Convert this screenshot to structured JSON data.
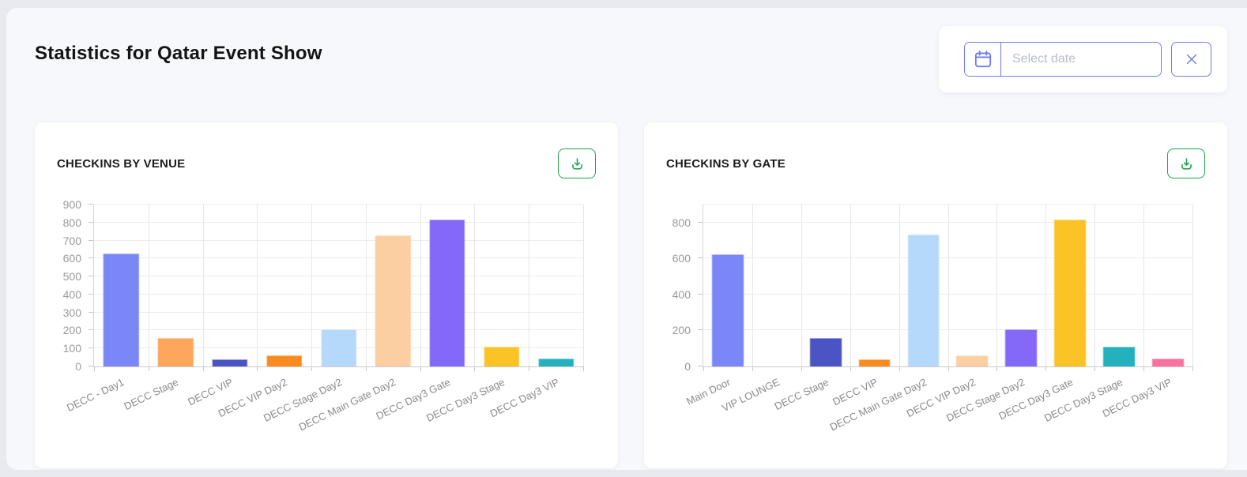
{
  "page": {
    "title": "Statistics for Qatar Event Show"
  },
  "date_picker": {
    "placeholder": "Select date",
    "calendar_icon": "calendar-icon",
    "clear_icon": "x-icon",
    "accent_color": "#6e7bef"
  },
  "cards": [
    {
      "title": "CHECKINS BY VENUE",
      "download_icon": "download-icon"
    },
    {
      "title": "CHECKINS BY GATE",
      "download_icon": "download-icon"
    }
  ],
  "chart_data": [
    {
      "type": "bar",
      "title": "CHECKINS BY VENUE",
      "categories": [
        "DECC - Day1",
        "DECC Stage",
        "DECC VIP",
        "DECC VIP Day2",
        "DECC Stage Day2",
        "DECC Main Gate Day2",
        "DECC Day3 Gate",
        "DECC Day3 Stage",
        "DECC Day3 VIP"
      ],
      "values": [
        628,
        160,
        40,
        60,
        205,
        730,
        815,
        110,
        45
      ],
      "colors": [
        "#7b86f7",
        "#fda75c",
        "#4a54c2",
        "#fb8b1f",
        "#b5d9fa",
        "#fbcfa2",
        "#8468f8",
        "#fcc327",
        "#22b1bd"
      ],
      "xlabel": "",
      "ylabel": "",
      "ylim": [
        0,
        900
      ],
      "ytick_labels": [
        0,
        100,
        200,
        300,
        400,
        500,
        600,
        700,
        800,
        900
      ],
      "ygridlines": [
        100,
        200,
        300,
        400,
        500,
        600,
        700,
        800,
        900
      ],
      "grid": true,
      "legend": "none",
      "xlabel_rotation": -26
    },
    {
      "type": "bar",
      "title": "CHECKINS BY GATE",
      "categories": [
        "Main Door",
        "VIP LOUNGE",
        "DECC Stage",
        "DECC VIP",
        "DECC Main Gate Day2",
        "DECC VIP Day2",
        "DECC Stage Day2",
        "DECC Day3 Gate",
        "DECC Day3 Stage",
        "DECC Day3 VIP"
      ],
      "values": [
        625,
        0,
        160,
        40,
        735,
        60,
        205,
        815,
        110,
        45
      ],
      "colors": [
        "#7b86f7",
        "#fda75c",
        "#4a54c2",
        "#fb8b1f",
        "#b5d9fa",
        "#fbcfa2",
        "#8468f8",
        "#fcc327",
        "#22b1bd",
        "#f9729b"
      ],
      "xlabel": "",
      "ylabel": "",
      "ylim": [
        0,
        900
      ],
      "ytick_labels": [
        0,
        200,
        400,
        600,
        800
      ],
      "ygridlines": [
        200,
        400,
        600,
        800,
        900
      ],
      "grid": true,
      "legend": "none",
      "xlabel_rotation": -26
    }
  ],
  "colors": {
    "download_green": "#1fa44e",
    "datepicker_accent": "#6e7bef",
    "page_background": "#f7f8fb",
    "frame_background": "#e8eaef",
    "axis_label": "#999999",
    "x_label": "#8a8a8a"
  }
}
